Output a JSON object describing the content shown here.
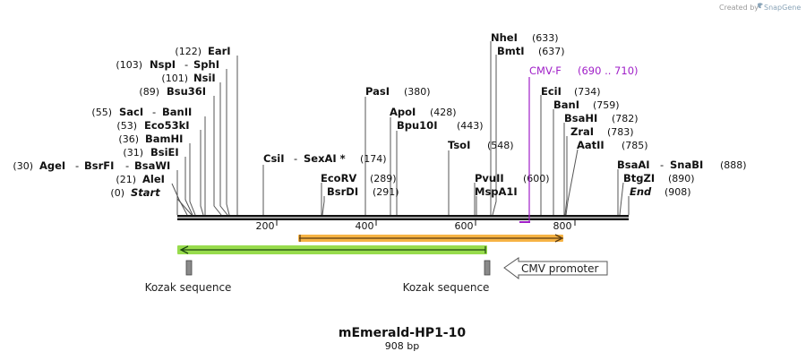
{
  "credit": {
    "prefix": "Created by",
    "brand": "SnapGene",
    "icon": "snapgene-logo-icon"
  },
  "map": {
    "title": "mEmerald-HP1-10",
    "length_label": "908 bp",
    "length": 908,
    "ticks": [
      "200",
      "400",
      "600",
      "800"
    ]
  },
  "sites": [
    {
      "pos": 122,
      "pos_label": "(122)",
      "names": [
        "EarI"
      ]
    },
    {
      "pos": 103,
      "pos_label": "(103)",
      "names": [
        "NspI",
        "SphI"
      ]
    },
    {
      "pos": 101,
      "pos_label": "(101)",
      "names": [
        "NsiI"
      ]
    },
    {
      "pos": 89,
      "pos_label": "(89)",
      "names": [
        "Bsu36I"
      ]
    },
    {
      "pos": 55,
      "pos_label": "(55)",
      "names": [
        "SacI",
        "BanII"
      ]
    },
    {
      "pos": 53,
      "pos_label": "(53)",
      "names": [
        "Eco53kI"
      ]
    },
    {
      "pos": 36,
      "pos_label": "(36)",
      "names": [
        "BamHI"
      ]
    },
    {
      "pos": 31,
      "pos_label": "(31)",
      "names": [
        "BsiEI"
      ]
    },
    {
      "pos": 30,
      "pos_label": "(30)",
      "names": [
        "AgeI",
        "BsrFI",
        "BsaWI"
      ]
    },
    {
      "pos": 21,
      "pos_label": "(21)",
      "names": [
        "AleI"
      ]
    },
    {
      "pos": 0,
      "pos_label": "(0)",
      "names": [
        "Start"
      ]
    },
    {
      "pos": 174,
      "pos_label": "(174)",
      "names": [
        "CsiI",
        "SexAI *"
      ]
    },
    {
      "pos": 380,
      "pos_label": "(380)",
      "names": [
        "PasI"
      ]
    },
    {
      "pos": 289,
      "pos_label": "(289)",
      "names": [
        "EcoRV"
      ]
    },
    {
      "pos": 291,
      "pos_label": "(291)",
      "names": [
        "BsrDI"
      ]
    },
    {
      "pos": 428,
      "pos_label": "(428)",
      "names": [
        "ApoI"
      ]
    },
    {
      "pos": 443,
      "pos_label": "(443)",
      "names": [
        "Bpu10I"
      ]
    },
    {
      "pos": 548,
      "pos_label": "(548)",
      "names": [
        "TsoI"
      ]
    },
    {
      "pos": 633,
      "pos_label": "(633)",
      "names": [
        "NheI"
      ]
    },
    {
      "pos": 637,
      "pos_label": "(637)",
      "names": [
        "BmtI"
      ]
    },
    {
      "pos": 600,
      "pos_label": "(600)",
      "names": [
        "PvuII"
      ]
    },
    {
      "pos": 600,
      "pos_label": "",
      "names": [
        "MspA1I"
      ]
    },
    {
      "pos": 734,
      "pos_label": "(734)",
      "names": [
        "EciI"
      ]
    },
    {
      "pos": 759,
      "pos_label": "(759)",
      "names": [
        "BanI"
      ]
    },
    {
      "pos": 782,
      "pos_label": "(782)",
      "names": [
        "BsaHI"
      ]
    },
    {
      "pos": 783,
      "pos_label": "(783)",
      "names": [
        "ZraI"
      ]
    },
    {
      "pos": 785,
      "pos_label": "(785)",
      "names": [
        "AatII"
      ]
    },
    {
      "pos": 888,
      "pos_label": "(888)",
      "names": [
        "BsaAI",
        "SnaBI"
      ]
    },
    {
      "pos": 890,
      "pos_label": "(890)",
      "names": [
        "BtgZI"
      ]
    },
    {
      "pos": 908,
      "pos_label": "(908)",
      "names": [
        "End"
      ]
    }
  ],
  "primer": {
    "name": "CMV-F",
    "range": "(690 .. 710)",
    "start": 690,
    "end": 710,
    "color": "#a020c8"
  },
  "features": [
    {
      "name": "orange-orf",
      "start": 244,
      "end": 777,
      "direction": "forward",
      "color": "#f5a623",
      "label": ""
    },
    {
      "name": "green-orf",
      "start": 0,
      "end": 620,
      "direction": "reverse",
      "color": "#7ed321",
      "label": ""
    },
    {
      "name": "kozak-1",
      "start": 16,
      "end": 26,
      "color": "#8a8a8a",
      "label": "Kozak sequence"
    },
    {
      "name": "kozak-2",
      "start": 618,
      "end": 628,
      "color": "#8a8a8a",
      "label": "Kozak sequence"
    },
    {
      "name": "cmv-promoter",
      "start": 660,
      "end": 908,
      "direction": "reverse",
      "color": "#ffffff",
      "label": "CMV promoter"
    }
  ]
}
